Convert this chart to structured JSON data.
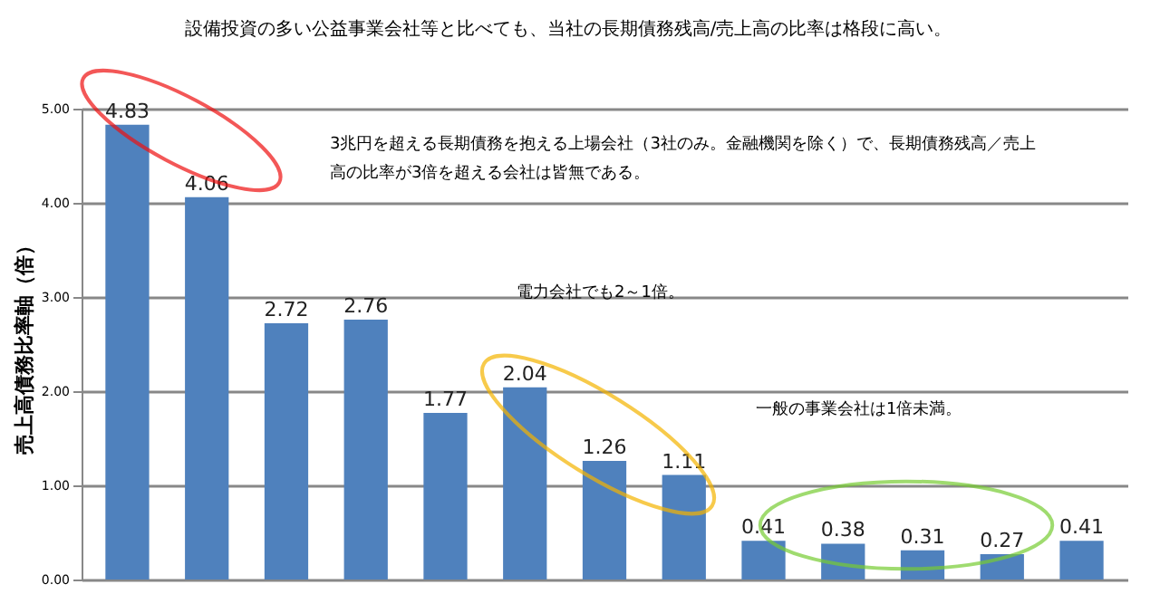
{
  "chart_data": {
    "type": "bar",
    "title": "設備投資の多い公益事業会社等と比べても、当社の長期債務残高/売上高の比率は格段に高い。",
    "ylabel": "売上高債務比率軸（倍）",
    "categories": [
      null,
      null,
      null,
      null,
      null,
      null,
      null,
      null,
      null,
      null,
      null,
      null,
      null
    ],
    "values": [
      4.83,
      4.06,
      2.72,
      2.76,
      1.77,
      2.04,
      1.26,
      1.11,
      0.41,
      0.38,
      0.31,
      0.27,
      0.41
    ],
    "color": "#4f81bd",
    "data_labels": true,
    "ylim": [
      0,
      5
    ],
    "yticks": [
      {
        "value": 0,
        "label": "0.00"
      },
      {
        "value": 1,
        "label": "1.00"
      },
      {
        "value": 2,
        "label": "2.00"
      },
      {
        "value": 3,
        "label": "3.00"
      },
      {
        "value": 4,
        "label": "4.00"
      },
      {
        "value": 5,
        "label": "5.00"
      }
    ],
    "grid": "y",
    "tick_labels": "y",
    "annotations": [
      "3兆円を超える長期債務を抱える上場会社（3社のみ。金融機関を除く）で、長期債務残高／売上高の比率が3倍を超える会社は皆無である。",
      "電力会社でも2～1倍。",
      "一般の事業会社は1倍未満。"
    ]
  }
}
